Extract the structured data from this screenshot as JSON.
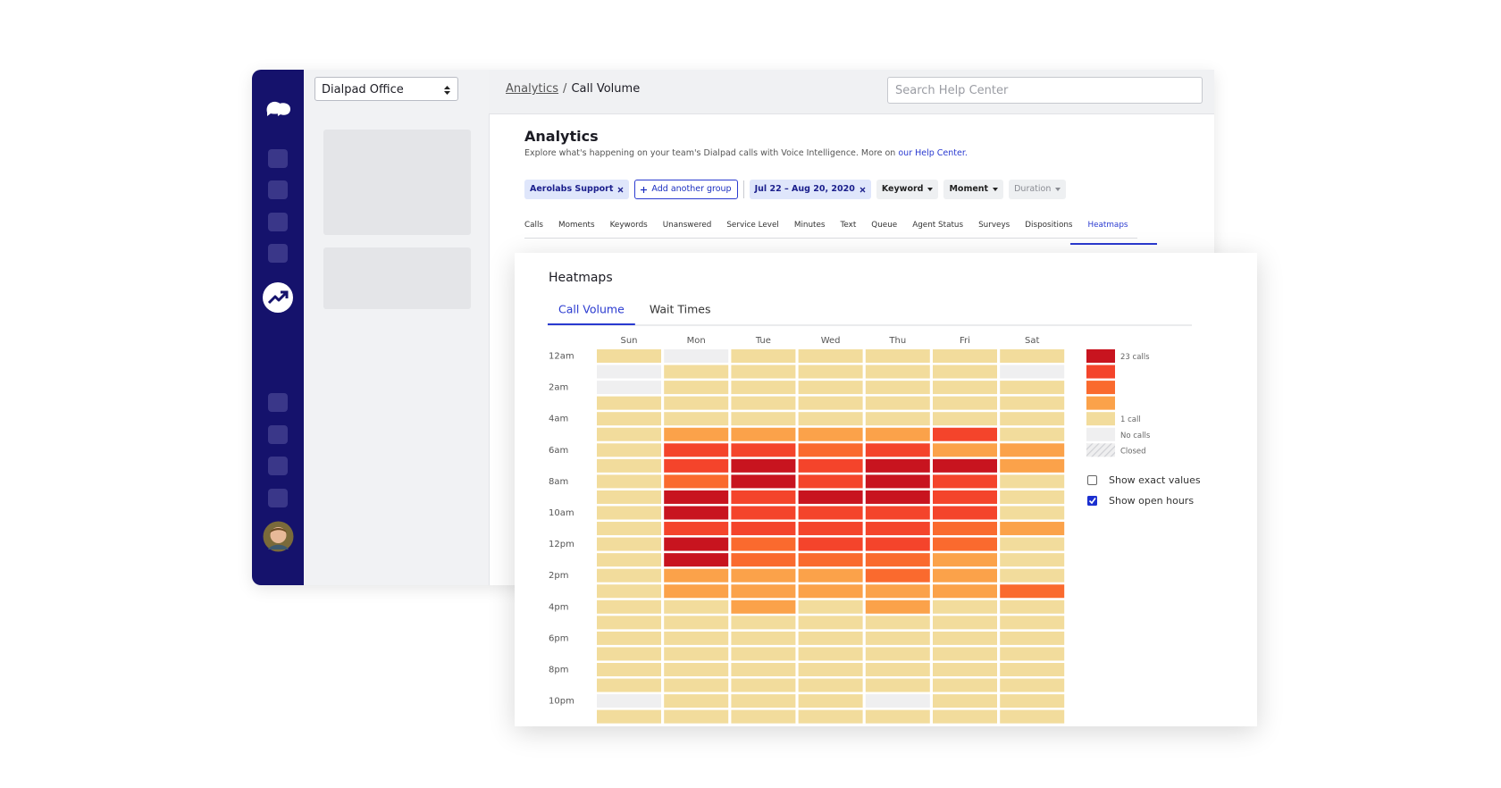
{
  "sidebar_select": "Dialpad Office",
  "breadcrumb": {
    "parent": "Analytics",
    "separator": "/",
    "current": "Call Volume"
  },
  "search_placeholder": "Search Help Center",
  "page": {
    "title": "Analytics",
    "description": "Explore what's happening on your team's Dialpad calls with Voice Intelligence. More on",
    "help_link": "our Help Center."
  },
  "filters": {
    "group": "Aerolabs Support",
    "add_group": "Add another group",
    "dates": "Jul 22 – Aug 20, 2020",
    "dropdowns": [
      "Keyword",
      "Moment",
      "Duration"
    ]
  },
  "tabs": [
    "Calls",
    "Moments",
    "Keywords",
    "Unanswered",
    "Service Level",
    "Minutes",
    "Text",
    "Queue",
    "Agent Status",
    "Surveys",
    "Dispositions",
    "Heatmaps"
  ],
  "active_tab": 11,
  "heatmaps": {
    "title": "Heatmaps",
    "tabs": [
      "Call Volume",
      "Wait Times"
    ],
    "active_tab": 0,
    "days": [
      "Sun",
      "Mon",
      "Tue",
      "Wed",
      "Thu",
      "Fri",
      "Sat"
    ],
    "hours": [
      "12am",
      null,
      "2am",
      null,
      "4am",
      null,
      "6am",
      null,
      "8am",
      null,
      "10am",
      null,
      "12pm",
      null,
      "2pm",
      null,
      "4pm",
      null,
      "6pm",
      null,
      "8pm",
      null,
      "10pm",
      null
    ],
    "level_colors": [
      "#efeff0",
      "#f2dc9c",
      "#fba24a",
      "#fa6a2e",
      "#f4442b",
      "#c8141f"
    ],
    "levels": [
      [
        1,
        0,
        1,
        1,
        1,
        1,
        1
      ],
      [
        0,
        1,
        1,
        1,
        1,
        1,
        0
      ],
      [
        0,
        1,
        1,
        1,
        1,
        1,
        1
      ],
      [
        1,
        1,
        1,
        1,
        1,
        1,
        1
      ],
      [
        1,
        1,
        1,
        1,
        1,
        1,
        1
      ],
      [
        1,
        2,
        2,
        2,
        2,
        4,
        1
      ],
      [
        1,
        4,
        4,
        3,
        4,
        2,
        2
      ],
      [
        1,
        4,
        5,
        4,
        5,
        5,
        2
      ],
      [
        1,
        3,
        5,
        4,
        5,
        4,
        1
      ],
      [
        1,
        5,
        4,
        5,
        5,
        4,
        1
      ],
      [
        1,
        5,
        4,
        4,
        4,
        4,
        1
      ],
      [
        1,
        4,
        4,
        4,
        4,
        3,
        2
      ],
      [
        1,
        5,
        3,
        4,
        4,
        3,
        1
      ],
      [
        1,
        5,
        3,
        3,
        3,
        2,
        1
      ],
      [
        1,
        2,
        2,
        2,
        3,
        2,
        1
      ],
      [
        1,
        2,
        2,
        2,
        2,
        2,
        3
      ],
      [
        1,
        1,
        2,
        1,
        2,
        1,
        1
      ],
      [
        1,
        1,
        1,
        1,
        1,
        1,
        1
      ],
      [
        1,
        1,
        1,
        1,
        1,
        1,
        1
      ],
      [
        1,
        1,
        1,
        1,
        1,
        1,
        1
      ],
      [
        1,
        1,
        1,
        1,
        1,
        1,
        1
      ],
      [
        1,
        1,
        1,
        1,
        1,
        1,
        1
      ],
      [
        0,
        1,
        1,
        1,
        0,
        1,
        1
      ],
      [
        1,
        1,
        1,
        1,
        1,
        1,
        1
      ]
    ],
    "legend": [
      {
        "label": "23 calls",
        "level": 5
      },
      {
        "label": null,
        "level": 4
      },
      {
        "label": null,
        "level": 3
      },
      {
        "label": null,
        "level": 2
      },
      {
        "label": "1 call",
        "level": 1
      },
      {
        "label": "No calls",
        "level": 0
      },
      {
        "label": "Closed",
        "hatched": true
      }
    ],
    "options": [
      {
        "label": "Show exact values",
        "checked": false
      },
      {
        "label": "Show open hours",
        "checked": true
      }
    ]
  }
}
